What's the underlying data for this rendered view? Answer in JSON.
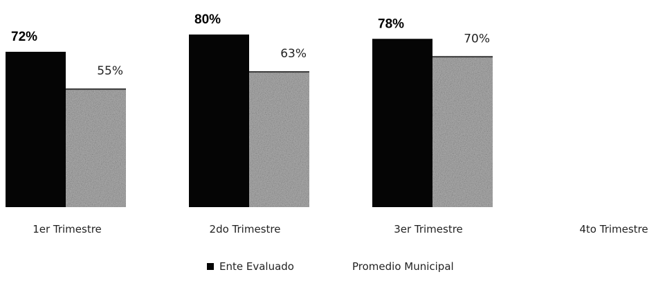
{
  "chart_data": {
    "type": "bar",
    "categories": [
      "1er Trimestre",
      "2do Trimestre",
      "3er Trimestre",
      "4to Trimestre"
    ],
    "series": [
      {
        "name": "Ente Evaluado",
        "values": [
          72,
          80,
          78,
          null
        ],
        "labels": [
          "72%",
          "80%",
          "78%",
          ""
        ],
        "color": "#050505"
      },
      {
        "name": "Promedio Municipal",
        "values": [
          55,
          63,
          70,
          null
        ],
        "labels": [
          "55%",
          "63%",
          "70%",
          ""
        ],
        "color": "#a6a6a6"
      }
    ],
    "legend_position": "bottom",
    "grid": false,
    "ylim": [
      0,
      100
    ]
  }
}
